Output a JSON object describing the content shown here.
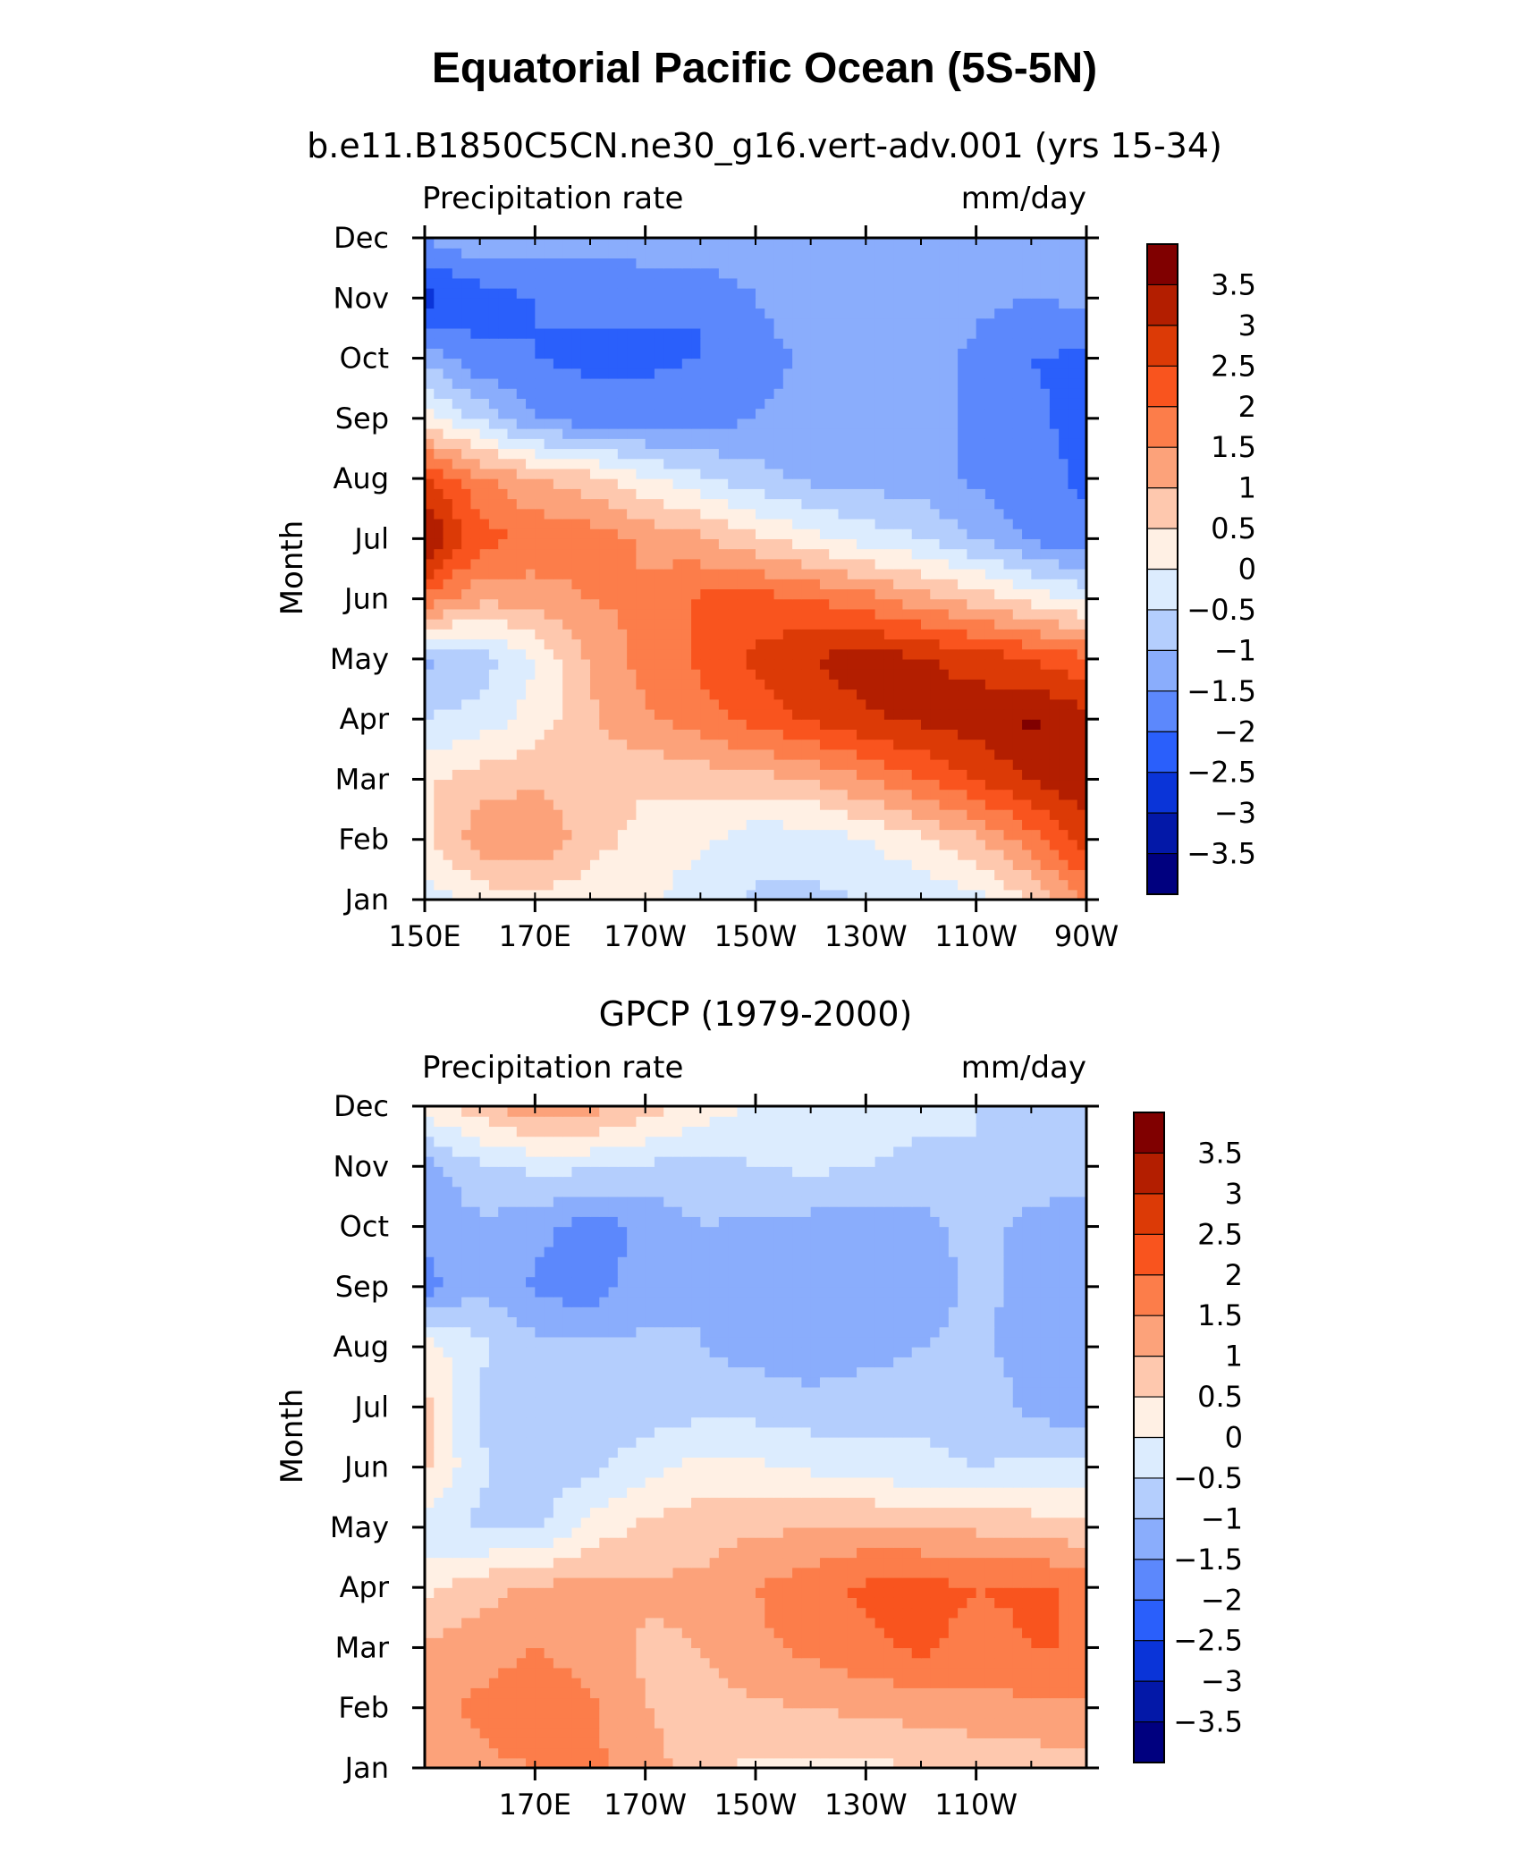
{
  "figure": {
    "title": "Equatorial Pacific Ocean (5S-5N)",
    "subtitle": "b.e11.B1850C5CN.ne30_g16.vert-adv.001 (yrs 15-34)"
  },
  "colorbar": {
    "levels": [
      "3.5",
      "3",
      "2.5",
      "2",
      "1.5",
      "1",
      "0.5",
      "0",
      "-0.5",
      "-1",
      "-1.5",
      "-2",
      "-2.5",
      "-3",
      "-3.5"
    ],
    "colors": [
      "#800000",
      "#b31e00",
      "#dc3a06",
      "#f9541e",
      "#fc7d4a",
      "#fca27a",
      "#fec8ae",
      "#fff0e4",
      "#dcecfe",
      "#b4cefd",
      "#8aadfc",
      "#5c88fc",
      "#2a5ffb",
      "#0a34d8",
      "#0318a8",
      "#00007f"
    ]
  },
  "chart_data": [
    {
      "type": "heatmap",
      "title": "b.e11.B1850C5CN.ne30_g16.vert-adv.001 (yrs 15-34)",
      "left_label": "Precipitation rate",
      "right_label": "mm/day",
      "ylabel": "Month",
      "y_categories": [
        "Jan",
        "Feb",
        "Mar",
        "Apr",
        "May",
        "Jun",
        "Jul",
        "Aug",
        "Sep",
        "Oct",
        "Nov",
        "Dec"
      ],
      "x_ticklabels": [
        "150E",
        "170E",
        "170W",
        "150W",
        "130W",
        "110W",
        "90W"
      ],
      "x": [
        150,
        160,
        170,
        180,
        190,
        200,
        210,
        220,
        230,
        240,
        250,
        260,
        270
      ],
      "xlim": [
        150,
        270
      ],
      "values": [
        [
          -0.3,
          0.2,
          0.3,
          0.2,
          0.1,
          -0.3,
          -0.6,
          -0.6,
          -0.5,
          -0.4,
          -0.2,
          0.5,
          1.5
        ],
        [
          0.4,
          1.3,
          1.5,
          0.7,
          0.3,
          0.1,
          -0.3,
          -0.3,
          0.0,
          0.4,
          0.9,
          1.8,
          2.8
        ],
        [
          0.4,
          0.8,
          0.9,
          0.8,
          0.6,
          0.7,
          0.8,
          1.0,
          1.5,
          2.0,
          2.5,
          3.0,
          3.4
        ],
        [
          -0.5,
          -0.3,
          0.2,
          0.9,
          1.4,
          1.8,
          2.2,
          2.6,
          2.9,
          3.1,
          3.3,
          3.6,
          3.2
        ],
        [
          -1.1,
          -0.8,
          0.0,
          1.1,
          1.7,
          2.1,
          2.6,
          3.0,
          3.3,
          3.1,
          2.8,
          2.5,
          2.1
        ],
        [
          1.9,
          1.1,
          1.2,
          1.5,
          1.6,
          2.1,
          2.2,
          2.0,
          1.7,
          1.2,
          0.8,
          0.3,
          -0.1
        ],
        [
          3.6,
          2.2,
          1.9,
          1.8,
          1.4,
          1.1,
          0.6,
          0.2,
          -0.2,
          -0.5,
          -1.0,
          -1.6,
          -1.9
        ],
        [
          2.6,
          1.6,
          1.0,
          0.7,
          0.1,
          -0.4,
          -0.8,
          -1.1,
          -1.2,
          -1.3,
          -1.6,
          -1.8,
          -2.1
        ],
        [
          0.2,
          -0.6,
          -1.5,
          -1.8,
          -1.8,
          -1.7,
          -1.5,
          -1.3,
          -1.2,
          -1.3,
          -1.6,
          -1.9,
          -2.2
        ],
        [
          -1.1,
          -1.9,
          -2.0,
          -2.1,
          -2.1,
          -2.0,
          -1.7,
          -1.4,
          -1.2,
          -1.3,
          -1.6,
          -2.0,
          -2.1
        ],
        [
          -2.7,
          -2.3,
          -2.0,
          -1.9,
          -1.9,
          -2.0,
          -1.5,
          -1.2,
          -1.1,
          -1.1,
          -1.4,
          -1.5,
          -1.4
        ],
        [
          -1.5,
          -1.0,
          -1.2,
          -1.3,
          -1.2,
          -1.0,
          -1.1,
          -1.2,
          -1.3,
          -1.3,
          -1.3,
          -1.3,
          -1.3
        ]
      ]
    },
    {
      "type": "heatmap",
      "title": "GPCP (1979-2000)",
      "left_label": "Precipitation rate",
      "right_label": "mm/day",
      "ylabel": "Month",
      "y_categories": [
        "Jan",
        "Feb",
        "Mar",
        "Apr",
        "May",
        "Jun",
        "Jul",
        "Aug",
        "Sep",
        "Oct",
        "Nov",
        "Dec"
      ],
      "x_ticklabels": [
        "170E",
        "170W",
        "150W",
        "130W",
        "110W"
      ],
      "x": [
        150,
        160,
        170,
        180,
        190,
        200,
        210,
        220,
        230,
        240,
        250,
        260,
        270
      ],
      "xlim": [
        150,
        270
      ],
      "values": [
        [
          1.2,
          1.4,
          1.5,
          1.6,
          1.3,
          0.6,
          0.4,
          0.4,
          0.4,
          0.5,
          0.6,
          0.7,
          0.8
        ],
        [
          1.3,
          1.6,
          1.8,
          1.6,
          1.0,
          0.8,
          0.9,
          1.0,
          1.1,
          1.2,
          1.3,
          1.4,
          1.4
        ],
        [
          1.1,
          1.3,
          1.5,
          1.3,
          0.9,
          1.0,
          1.4,
          1.6,
          1.9,
          2.1,
          1.8,
          2.0,
          2.0
        ],
        [
          0.4,
          0.8,
          1.1,
          1.2,
          1.1,
          1.1,
          1.5,
          1.8,
          2.1,
          2.2,
          2.0,
          2.1,
          1.9
        ],
        [
          -0.3,
          -0.6,
          -0.6,
          0.2,
          0.6,
          0.8,
          0.9,
          1.0,
          1.1,
          1.0,
          0.9,
          0.8,
          0.6
        ],
        [
          0.6,
          -0.4,
          -0.9,
          -0.6,
          -0.2,
          0.2,
          0.1,
          -0.1,
          -0.3,
          -0.4,
          -0.5,
          -0.4,
          -0.3
        ],
        [
          0.7,
          -0.6,
          -0.8,
          -0.8,
          -0.8,
          -0.7,
          -0.7,
          -0.8,
          -0.7,
          -0.6,
          -0.7,
          -1.1,
          -1.4
        ],
        [
          0.2,
          -0.4,
          -0.8,
          -0.9,
          -0.9,
          -1.0,
          -1.2,
          -1.3,
          -1.2,
          -1.0,
          -0.9,
          -1.2,
          -1.3
        ],
        [
          -1.7,
          -1.1,
          -1.6,
          -1.8,
          -1.2,
          -1.0,
          -1.2,
          -1.4,
          -1.4,
          -1.2,
          -0.9,
          -1.1,
          -1.4
        ],
        [
          -1.4,
          -1.1,
          -1.3,
          -1.8,
          -1.4,
          -1.0,
          -1.1,
          -1.2,
          -1.3,
          -1.2,
          -0.8,
          -1.2,
          -1.5
        ],
        [
          -1.2,
          -0.6,
          -0.4,
          -0.4,
          -0.6,
          -0.7,
          -0.5,
          -0.4,
          -0.5,
          -0.6,
          -0.5,
          -0.6,
          -0.6
        ],
        [
          0.2,
          0.8,
          1.4,
          1.2,
          0.8,
          0.3,
          -0.1,
          -0.3,
          -0.3,
          -0.4,
          -0.5,
          -0.6,
          -0.6
        ]
      ]
    }
  ]
}
